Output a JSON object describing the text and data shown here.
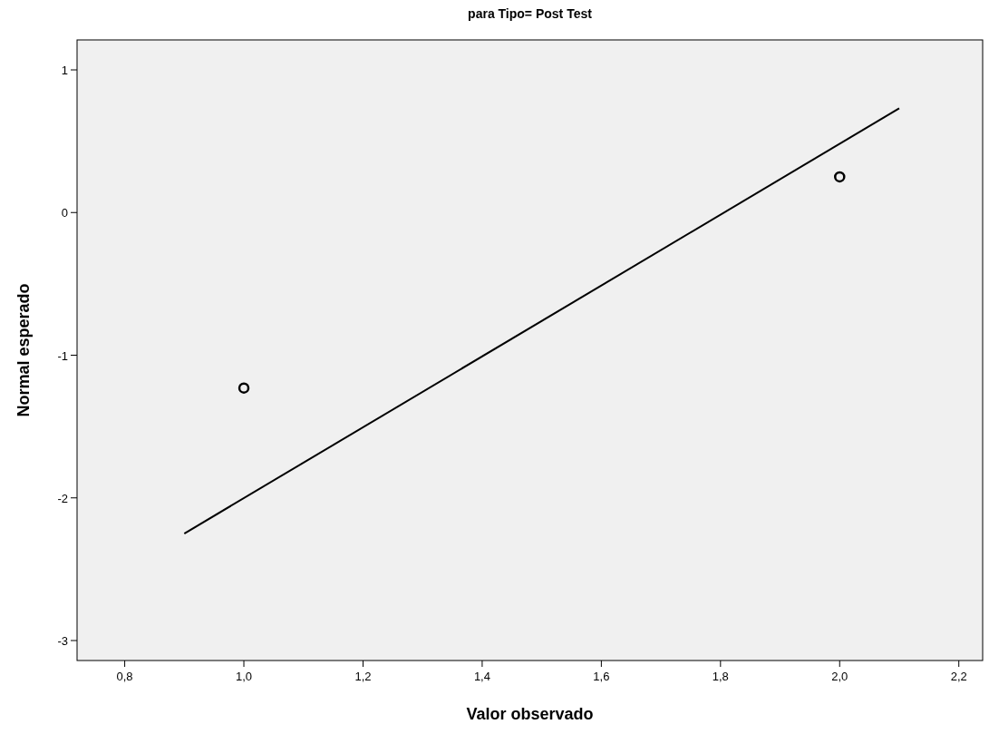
{
  "chart_data": {
    "type": "scatter",
    "title": "para Tipo= Post Test",
    "xlabel": "Valor observado",
    "ylabel": "Normal esperado",
    "xlim": [
      0.72,
      2.24
    ],
    "xticks": [
      {
        "value": 0.8,
        "label": "0,8"
      },
      {
        "value": 1.0,
        "label": "1,0"
      },
      {
        "value": 1.2,
        "label": "1,2"
      },
      {
        "value": 1.4,
        "label": "1,4"
      },
      {
        "value": 1.6,
        "label": "1,6"
      },
      {
        "value": 1.8,
        "label": "1,8"
      },
      {
        "value": 2.0,
        "label": "2,0"
      },
      {
        "value": 2.2,
        "label": "2,2"
      }
    ],
    "ylim": [
      -3.14,
      1.21
    ],
    "yticks": [
      -3,
      -2,
      -1,
      0,
      1
    ],
    "series": [
      {
        "color": "#000000",
        "marker": "circle",
        "x": [
          1.0,
          2.0
        ],
        "values": [
          -1.23,
          0.25
        ]
      },
      {
        "type": "line",
        "color": "#000000",
        "x": [
          0.9,
          2.1
        ],
        "values": [
          -2.25,
          0.73
        ]
      }
    ]
  }
}
